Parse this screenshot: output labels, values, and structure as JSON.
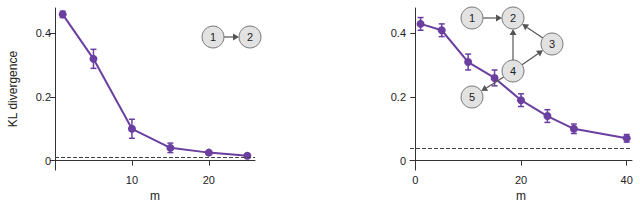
{
  "chart_data": [
    {
      "type": "line",
      "color": "#6b3fa0",
      "marker": "circle",
      "x": [
        1,
        5,
        10,
        15,
        20,
        25
      ],
      "values": [
        0.46,
        0.32,
        0.1,
        0.04,
        0.025,
        0.015
      ],
      "errors": [
        0.01,
        0.03,
        0.03,
        0.015,
        0.006,
        0.005
      ],
      "xlim": [
        0,
        26
      ],
      "xticks": [
        10,
        20
      ],
      "ylim": [
        -0.03,
        0.48
      ],
      "yticks": [
        0,
        0.2,
        0.4
      ],
      "x_label": "m",
      "y_label": "KL divergence",
      "reference": {
        "value": 0.015,
        "line_style": "dashed"
      },
      "graph": {
        "nodes": [
          "1",
          "2"
        ],
        "edges": [
          [
            "1",
            "2"
          ]
        ]
      }
    },
    {
      "type": "line",
      "color": "#6b3fa0",
      "marker": "circle",
      "x": [
        1,
        5,
        10,
        15,
        20,
        25,
        30,
        40
      ],
      "values": [
        0.43,
        0.41,
        0.31,
        0.26,
        0.19,
        0.14,
        0.1,
        0.07
      ],
      "errors": [
        0.02,
        0.02,
        0.025,
        0.025,
        0.02,
        0.02,
        0.015,
        0.012
      ],
      "xlim": [
        -1,
        41
      ],
      "xticks": [
        0,
        20,
        40
      ],
      "ylim": [
        -0.03,
        0.48
      ],
      "yticks": [
        0,
        0.2,
        0.4
      ],
      "x_label": "m",
      "reference": {
        "value": 0.045,
        "line_style": "dashed"
      },
      "graph": {
        "nodes": [
          "1",
          "2",
          "3",
          "4",
          "5"
        ],
        "edges": [
          [
            "1",
            "2"
          ],
          [
            "3",
            "2"
          ],
          [
            "4",
            "3"
          ],
          [
            "4",
            "2"
          ],
          [
            "4",
            "5"
          ]
        ]
      }
    }
  ]
}
